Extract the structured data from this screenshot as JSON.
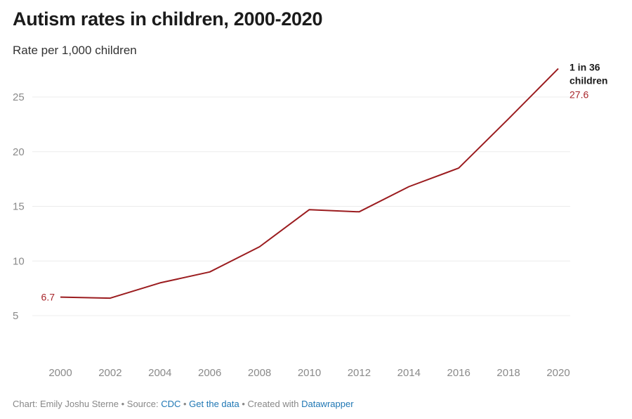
{
  "chart_data": {
    "type": "line",
    "title": "Autism rates in children, 2000-2020",
    "subtitle": "Rate per 1,000 children",
    "x": [
      2000,
      2002,
      2004,
      2006,
      2008,
      2010,
      2012,
      2014,
      2016,
      2018,
      2020
    ],
    "series": [
      {
        "values": [
          6.7,
          6.6,
          8.0,
          9.0,
          11.3,
          14.7,
          14.5,
          16.8,
          18.5,
          23.0,
          27.6
        ],
        "color": "#9b1c1f"
      }
    ],
    "xlim": [
      2000,
      2020
    ],
    "ylim": [
      5,
      27.6
    ],
    "yticks": [
      5,
      10,
      15,
      20,
      25
    ],
    "xticks": [
      2000,
      2002,
      2004,
      2006,
      2008,
      2010,
      2012,
      2014,
      2016,
      2018,
      2020
    ],
    "grid": true,
    "annotations": {
      "start_value": "6.7",
      "end_line1": "1 in 36",
      "end_line2": "children",
      "end_value": "27.6"
    }
  },
  "footer": {
    "prefix": "Chart: Emily Joshu Sterne • Source: ",
    "source": "CDC",
    "sep1": " • ",
    "get_data": "Get the data",
    "sep2": " • Created with ",
    "tool": "Datawrapper"
  }
}
